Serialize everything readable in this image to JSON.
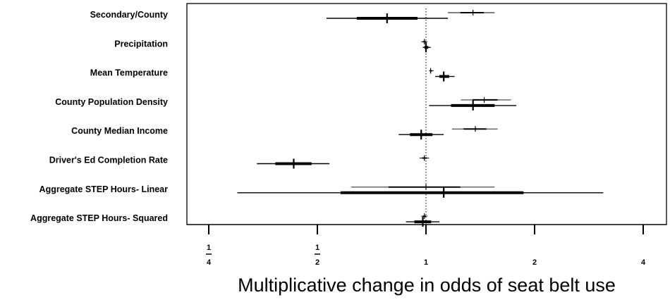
{
  "chart_data": {
    "type": "forest",
    "title": "",
    "xlabel": "Multiplicative change in odds of seat belt use",
    "ylabel": "",
    "x_scale": "log2",
    "xlim": [
      0.2,
      4.0
    ],
    "x_ticks": [
      {
        "value": 0.25,
        "label_num": "1",
        "label_den": "4"
      },
      {
        "value": 0.5,
        "label_num": "1",
        "label_den": "2"
      },
      {
        "value": 1,
        "label": "1"
      },
      {
        "value": 2,
        "label": "2"
      },
      {
        "value": 4,
        "label": "4"
      }
    ],
    "reference_line": 1,
    "grid": false,
    "categories": [
      "Secondary/County",
      "Precipitation",
      "Mean Temperature",
      "County Population Density",
      "County Median Income",
      "Driver's Ed Completion Rate",
      "Aggregate STEP Hours- Linear",
      "Aggregate STEP Hours- Squared"
    ],
    "series": [
      {
        "style": "upper-thin",
        "points": [
          {
            "est": 1.35,
            "lo": 1.15,
            "hi": 1.55
          },
          {
            "est": 0.99,
            "lo": 0.97,
            "hi": 1.01
          },
          {
            "est": 1.03,
            "lo": 1.02,
            "hi": 1.05
          },
          {
            "est": 1.45,
            "lo": 1.25,
            "hi": 1.72
          },
          {
            "est": 1.37,
            "lo": 1.18,
            "hi": 1.58
          },
          {
            "est": 0.99,
            "lo": 0.96,
            "hi": 1.02
          },
          {
            "est": 1.0,
            "lo": 0.62,
            "hi": 1.55
          },
          {
            "est": 0.99,
            "lo": 0.97,
            "hi": 1.01
          }
        ]
      },
      {
        "style": "lower-bold",
        "points": [
          {
            "est": 0.78,
            "lo": 0.53,
            "hi": 1.15
          },
          {
            "est": 1.0,
            "lo": 0.98,
            "hi": 1.03
          },
          {
            "est": 1.12,
            "lo": 1.06,
            "hi": 1.2
          },
          {
            "est": 1.35,
            "lo": 1.02,
            "hi": 1.78
          },
          {
            "est": 0.97,
            "lo": 0.84,
            "hi": 1.12
          },
          {
            "est": 0.43,
            "lo": 0.34,
            "hi": 0.54
          },
          {
            "est": 1.12,
            "lo": 0.3,
            "hi": 3.1
          },
          {
            "est": 0.98,
            "lo": 0.88,
            "hi": 1.09
          }
        ]
      }
    ]
  }
}
